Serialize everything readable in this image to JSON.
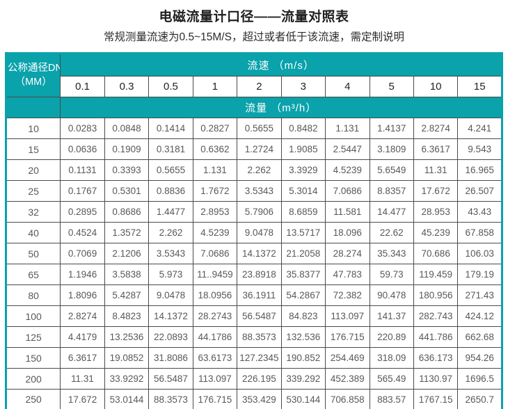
{
  "page": {
    "title": "电磁流量计口径——流量对照表",
    "subtitle": "常规测量流速为0.5~15M/S，超过或者低于该流速，需定制说明"
  },
  "colors": {
    "header_teal": "#0aa2ab",
    "grid_border": "#4a4a4a",
    "data_text": "#57585a"
  },
  "table": {
    "corner_header_line1": "公称通径DN",
    "corner_header_line2": "（MM）",
    "velocity_header": "流速 （m/s）",
    "velocity_columns": [
      "0.1",
      "0.3",
      "0.5",
      "1",
      "2",
      "3",
      "4",
      "5",
      "10",
      "15"
    ],
    "flow_header": "流量 （m³/h）",
    "rows": [
      {
        "dn": "10",
        "values": [
          "0.0283",
          "0.0848",
          "0.1414",
          "0.2827",
          "0.5655",
          "0.8482",
          "1.131",
          "1.4137",
          "2.8274",
          "4.241"
        ]
      },
      {
        "dn": "15",
        "values": [
          "0.0636",
          "0.1909",
          "0.3181",
          "0.6362",
          "1.2724",
          "1.9085",
          "2.5447",
          "3.1809",
          "6.3617",
          "9.543"
        ]
      },
      {
        "dn": "20",
        "values": [
          "0.1131",
          "0.3393",
          "0.5655",
          "1.131",
          "2.262",
          "3.3929",
          "4.5239",
          "5.6549",
          "11.31",
          "16.965"
        ]
      },
      {
        "dn": "25",
        "values": [
          "0.1767",
          "0.5301",
          "0.8836",
          "1.7672",
          "3.5343",
          "5.3014",
          "7.0686",
          "8.8357",
          "17.672",
          "26.507"
        ]
      },
      {
        "dn": "32",
        "values": [
          "0.2895",
          "0.8686",
          "1.4477",
          "2.8953",
          "5.7906",
          "8.6859",
          "11.581",
          "14.477",
          "28.953",
          "43.43"
        ]
      },
      {
        "dn": "40",
        "values": [
          "0.4524",
          "1.3572",
          "2.262",
          "4.5239",
          "9.0478",
          "13.5717",
          "18.096",
          "22.62",
          "45.239",
          "67.858"
        ]
      },
      {
        "dn": "50",
        "values": [
          "0.7069",
          "2.1206",
          "3.5343",
          "7.0686",
          "14.1372",
          "21.2058",
          "28.274",
          "35.343",
          "70.686",
          "106.03"
        ]
      },
      {
        "dn": "65",
        "values": [
          "1.1946",
          "3.5838",
          "5.973",
          "11..9459",
          "23.8918",
          "35.8377",
          "47.783",
          "59.73",
          "119.459",
          "179.19"
        ]
      },
      {
        "dn": "80",
        "values": [
          "1.8096",
          "5.4287",
          "9.0478",
          "18.0956",
          "36.1911",
          "54.2867",
          "72.382",
          "90.478",
          "180.956",
          "271.43"
        ]
      },
      {
        "dn": "100",
        "values": [
          "2.8274",
          "8.4823",
          "14.1372",
          "28.2743",
          "56.5487",
          "84.823",
          "113.097",
          "141.37",
          "282.743",
          "424.12"
        ]
      },
      {
        "dn": "125",
        "values": [
          "4.4179",
          "13.2536",
          "22.0893",
          "44.1786",
          "88.3573",
          "132.536",
          "176.715",
          "220.89",
          "441.786",
          "662.68"
        ]
      },
      {
        "dn": "150",
        "values": [
          "6.3617",
          "19.0852",
          "31.8086",
          "63.6173",
          "127.2345",
          "190.852",
          "254.469",
          "318.09",
          "636.173",
          "954.26"
        ]
      },
      {
        "dn": "200",
        "values": [
          "11.31",
          "33.9292",
          "56.5487",
          "113.097",
          "226.195",
          "339.292",
          "452.389",
          "565.49",
          "1130.97",
          "1696.5"
        ]
      },
      {
        "dn": "250",
        "values": [
          "17.672",
          "53.0144",
          "88.3573",
          "176.715",
          "353.429",
          "530.144",
          "706.858",
          "883.57",
          "1767.15",
          "2650.7"
        ]
      }
    ]
  }
}
